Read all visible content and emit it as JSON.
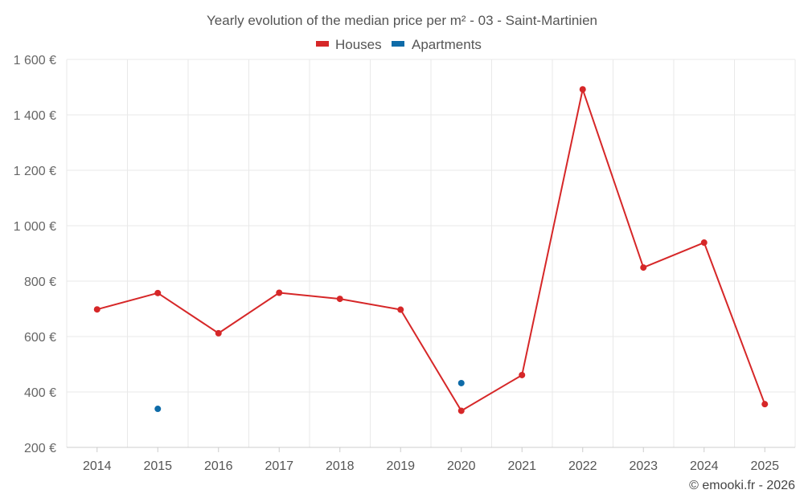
{
  "chart_data": {
    "type": "line",
    "title": "Yearly evolution of the median price per m² - 03 - Saint-Martinien",
    "categories": [
      "2014",
      "2015",
      "2016",
      "2017",
      "2018",
      "2019",
      "2020",
      "2021",
      "2022",
      "2023",
      "2024",
      "2025"
    ],
    "ylim": [
      200,
      1600
    ],
    "yticks": [
      {
        "value": 200,
        "label": "200 €"
      },
      {
        "value": 400,
        "label": "400 €"
      },
      {
        "value": 600,
        "label": "600 €"
      },
      {
        "value": 800,
        "label": "800 €"
      },
      {
        "value": 1000,
        "label": "1 000 €"
      },
      {
        "value": 1200,
        "label": "1 200 €"
      },
      {
        "value": 1400,
        "label": "1 400 €"
      },
      {
        "value": 1600,
        "label": "1 600 €"
      }
    ],
    "grid": true,
    "legend_position": "top-center",
    "series": [
      {
        "name": "Houses",
        "color": "#d62728",
        "line": true,
        "values": [
          698,
          757,
          612,
          758,
          736,
          697,
          332,
          461,
          1492,
          849,
          939,
          356
        ]
      },
      {
        "name": "Apartments",
        "color": "#0e6ba8",
        "line": false,
        "values": [
          null,
          339,
          null,
          null,
          null,
          null,
          432,
          null,
          null,
          null,
          null,
          null
        ]
      }
    ],
    "credit": "© emooki.fr - 2026"
  }
}
